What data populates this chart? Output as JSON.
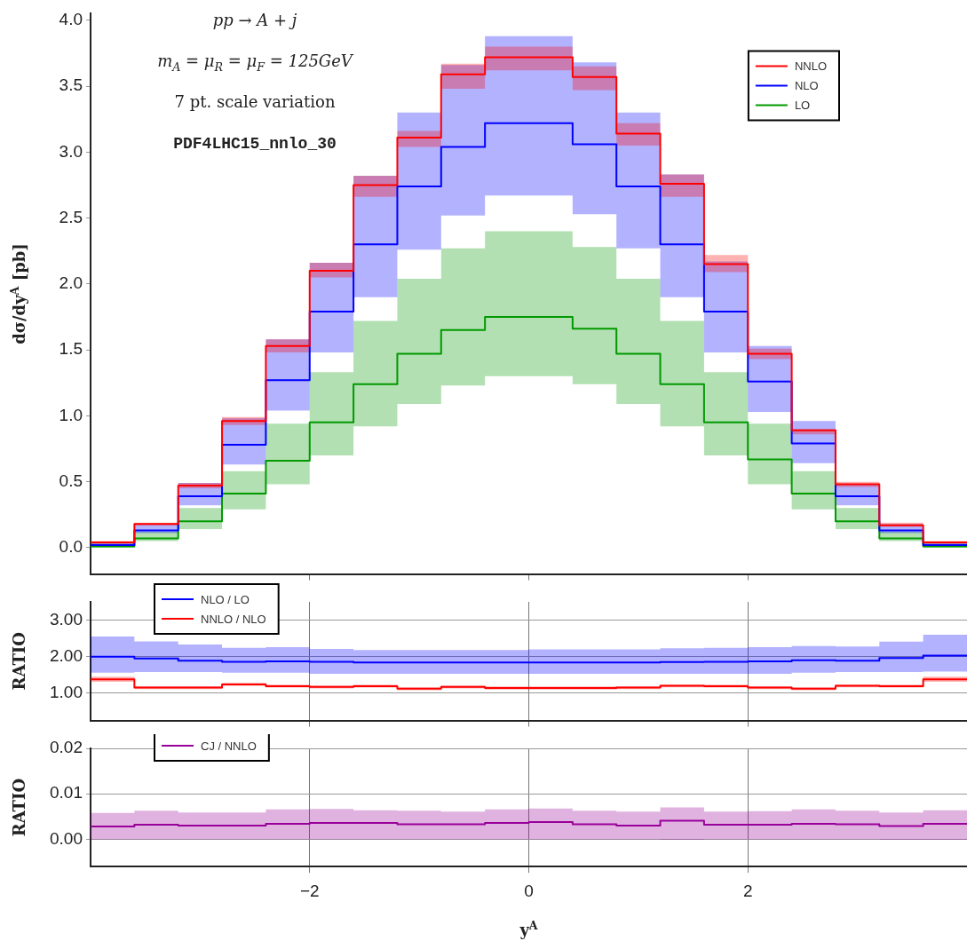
{
  "chart_data": [
    {
      "type": "step",
      "x": [
        -4,
        -3.6,
        -3.2,
        -2.8,
        -2.4,
        -2,
        -1.6,
        -1.2,
        -0.8,
        -0.4,
        0,
        0.4,
        0.8,
        1.2,
        1.6,
        2,
        2.4,
        2.8,
        3.2,
        3.6,
        4
      ],
      "series": [
        {
          "name": "NNLO",
          "color": "#ff0000",
          "values": [
            0.04,
            0.18,
            0.47,
            0.96,
            1.53,
            2.1,
            2.75,
            3.11,
            3.59,
            3.72,
            3.72,
            3.57,
            3.14,
            2.76,
            2.15,
            1.47,
            0.89,
            0.48,
            0.17,
            0.04,
            0.04
          ],
          "upper": [
            0.05,
            0.19,
            0.49,
            0.99,
            1.58,
            2.16,
            2.82,
            3.16,
            3.67,
            3.8,
            3.8,
            3.65,
            3.22,
            2.83,
            2.22,
            1.51,
            0.9,
            0.5,
            0.19,
            0.05,
            0.05
          ],
          "lower": [
            0.03,
            0.17,
            0.45,
            0.93,
            1.48,
            2.05,
            2.66,
            3.04,
            3.48,
            3.62,
            3.62,
            3.47,
            3.05,
            2.66,
            2.09,
            1.43,
            0.86,
            0.46,
            0.16,
            0.03,
            0.03
          ]
        },
        {
          "name": "NLO",
          "color": "#0000ff",
          "values": [
            0.02,
            0.13,
            0.39,
            0.78,
            1.27,
            1.79,
            2.3,
            2.74,
            3.04,
            3.22,
            3.22,
            3.06,
            2.74,
            2.3,
            1.79,
            1.26,
            0.79,
            0.39,
            0.13,
            0.02,
            0.02
          ],
          "upper": [
            0.04,
            0.18,
            0.49,
            0.98,
            1.58,
            2.16,
            2.82,
            3.3,
            3.66,
            3.88,
            3.88,
            3.68,
            3.3,
            2.83,
            2.17,
            1.53,
            0.96,
            0.48,
            0.18,
            0.04,
            0.04
          ],
          "lower": [
            0.01,
            0.11,
            0.32,
            0.63,
            1.04,
            1.48,
            1.9,
            2.26,
            2.52,
            2.67,
            2.67,
            2.53,
            2.27,
            1.9,
            1.48,
            1.03,
            0.64,
            0.32,
            0.11,
            0.01,
            0.01
          ]
        },
        {
          "name": "LO",
          "color": "#009900",
          "values": [
            0.01,
            0.07,
            0.2,
            0.41,
            0.66,
            0.95,
            1.24,
            1.47,
            1.65,
            1.75,
            1.75,
            1.66,
            1.47,
            1.24,
            0.95,
            0.67,
            0.41,
            0.2,
            0.07,
            0.01,
            0.01
          ],
          "upper": [
            0.03,
            0.12,
            0.3,
            0.58,
            0.94,
            1.33,
            1.72,
            2.04,
            2.27,
            2.4,
            2.4,
            2.28,
            2.04,
            1.72,
            1.33,
            0.94,
            0.58,
            0.3,
            0.12,
            0.03,
            0.03
          ],
          "lower": [
            0.0,
            0.05,
            0.14,
            0.29,
            0.48,
            0.7,
            0.92,
            1.09,
            1.23,
            1.3,
            1.3,
            1.24,
            1.09,
            0.92,
            0.7,
            0.48,
            0.29,
            0.14,
            0.05,
            0.0,
            0.0
          ]
        }
      ],
      "xlim": [
        -4,
        4
      ],
      "xticks": [
        -2,
        0,
        2
      ],
      "ylim": [
        -0.2,
        4.05
      ],
      "yticks": [
        {
          "value": 0,
          "label": "0.0"
        },
        {
          "value": 0.5,
          "label": "0.5"
        },
        {
          "value": 1,
          "label": "1.0"
        },
        {
          "value": 1.5,
          "label": "1.5"
        },
        {
          "value": 2,
          "label": "2.0"
        },
        {
          "value": 2.5,
          "label": "2.5"
        },
        {
          "value": 3,
          "label": "3.0"
        },
        {
          "value": 3.5,
          "label": "3.5"
        },
        {
          "value": 4,
          "label": "4.0"
        }
      ],
      "ylabel": "dσ/dy$^{A}$ [pb]",
      "annotations": [
        "pp → A + j",
        "m$_{A}$ = μ$_{R}$ = μ$_{F}$ = 125GeV",
        "7 pt. scale variation",
        "PDF4LHC15_nnlo_30"
      ],
      "legend": "top right",
      "tick_labels": "y",
      "grid": false
    },
    {
      "type": "step",
      "x": [
        -4,
        -3.6,
        -3.2,
        -2.8,
        -2.4,
        -2,
        -1.6,
        -1.2,
        -0.8,
        -0.4,
        0,
        0.4,
        0.8,
        1.2,
        1.6,
        2,
        2.4,
        2.8,
        3.2,
        3.6,
        4
      ],
      "series": [
        {
          "name": "NLO / LO",
          "color": "#0000ff",
          "values": [
            2.0,
            1.95,
            1.89,
            1.86,
            1.87,
            1.86,
            1.84,
            1.84,
            1.84,
            1.84,
            1.84,
            1.84,
            1.84,
            1.85,
            1.86,
            1.87,
            1.9,
            1.89,
            1.96,
            2.03,
            2.03
          ],
          "upper": [
            2.55,
            2.42,
            2.33,
            2.24,
            2.26,
            2.21,
            2.18,
            2.18,
            2.18,
            2.18,
            2.2,
            2.2,
            2.2,
            2.23,
            2.24,
            2.26,
            2.29,
            2.28,
            2.41,
            2.6,
            2.6
          ],
          "lower": [
            1.56,
            1.58,
            1.58,
            1.56,
            1.56,
            1.53,
            1.53,
            1.53,
            1.53,
            1.53,
            1.53,
            1.53,
            1.53,
            1.53,
            1.53,
            1.53,
            1.56,
            1.58,
            1.58,
            1.59,
            1.59
          ]
        },
        {
          "name": "NNLO / NLO",
          "color": "#ff0000",
          "values": [
            1.38,
            1.15,
            1.15,
            1.24,
            1.19,
            1.17,
            1.19,
            1.12,
            1.17,
            1.14,
            1.14,
            1.14,
            1.15,
            1.2,
            1.19,
            1.15,
            1.12,
            1.2,
            1.19,
            1.38,
            1.38
          ],
          "upper": [
            1.45,
            1.19,
            1.19,
            1.28,
            1.23,
            1.21,
            1.23,
            1.16,
            1.21,
            1.18,
            1.18,
            1.18,
            1.19,
            1.24,
            1.23,
            1.19,
            1.16,
            1.24,
            1.23,
            1.45,
            1.45
          ],
          "lower": [
            1.31,
            1.11,
            1.11,
            1.2,
            1.15,
            1.13,
            1.15,
            1.08,
            1.13,
            1.1,
            1.1,
            1.1,
            1.11,
            1.16,
            1.15,
            1.11,
            1.08,
            1.16,
            1.15,
            1.31,
            1.31
          ]
        }
      ],
      "xlim": [
        -4,
        4
      ],
      "xticks": [
        -2,
        0,
        2
      ],
      "ylim": [
        0.25,
        3.5
      ],
      "yticks": [
        {
          "value": 1,
          "label": "1.00"
        },
        {
          "value": 2,
          "label": "2.00"
        },
        {
          "value": 3,
          "label": "3.00"
        }
      ],
      "ylabel": "RATIO",
      "legend": "top left",
      "tick_labels": "y",
      "grid": true
    },
    {
      "type": "step",
      "x": [
        -4,
        -3.6,
        -3.2,
        -2.8,
        -2.4,
        -2,
        -1.6,
        -1.2,
        -0.8,
        -0.4,
        0,
        0.4,
        0.8,
        1.2,
        1.6,
        2,
        2.4,
        2.8,
        3.2,
        3.6,
        4
      ],
      "series": [
        {
          "name": "CJ / NNLO",
          "color": "#990099",
          "values": [
            0.0028,
            0.0032,
            0.003,
            0.003,
            0.0034,
            0.0036,
            0.0036,
            0.0033,
            0.0033,
            0.0036,
            0.0038,
            0.0033,
            0.003,
            0.0041,
            0.0032,
            0.0032,
            0.0034,
            0.0033,
            0.0029,
            0.0034,
            0.0034
          ],
          "upper": [
            0.0058,
            0.0063,
            0.0059,
            0.0059,
            0.0066,
            0.0067,
            0.0064,
            0.0063,
            0.0061,
            0.0066,
            0.0068,
            0.0063,
            0.0061,
            0.007,
            0.0061,
            0.0062,
            0.0066,
            0.0063,
            0.0059,
            0.0064,
            0.0064
          ],
          "lower": [
            0,
            0,
            0,
            0,
            0,
            0,
            0,
            0,
            0,
            0,
            0,
            0,
            0,
            -0.0001,
            0,
            0,
            0,
            0,
            -0.0001,
            -0.0001,
            -0.0001
          ]
        }
      ],
      "xlim": [
        -4,
        4
      ],
      "xticks": [
        {
          "value": -2,
          "label": "−2"
        },
        {
          "value": 0,
          "label": "0"
        },
        {
          "value": 2,
          "label": "2"
        }
      ],
      "ylim": [
        -0.006,
        0.02
      ],
      "yticks": [
        {
          "value": 0,
          "label": "0.00"
        },
        {
          "value": 0.01,
          "label": "0.01"
        },
        {
          "value": 0.02,
          "label": "0.02"
        }
      ],
      "xlabel": "y$^{A}$",
      "ylabel": "RATIO",
      "legend": "top left",
      "grid": true
    }
  ]
}
